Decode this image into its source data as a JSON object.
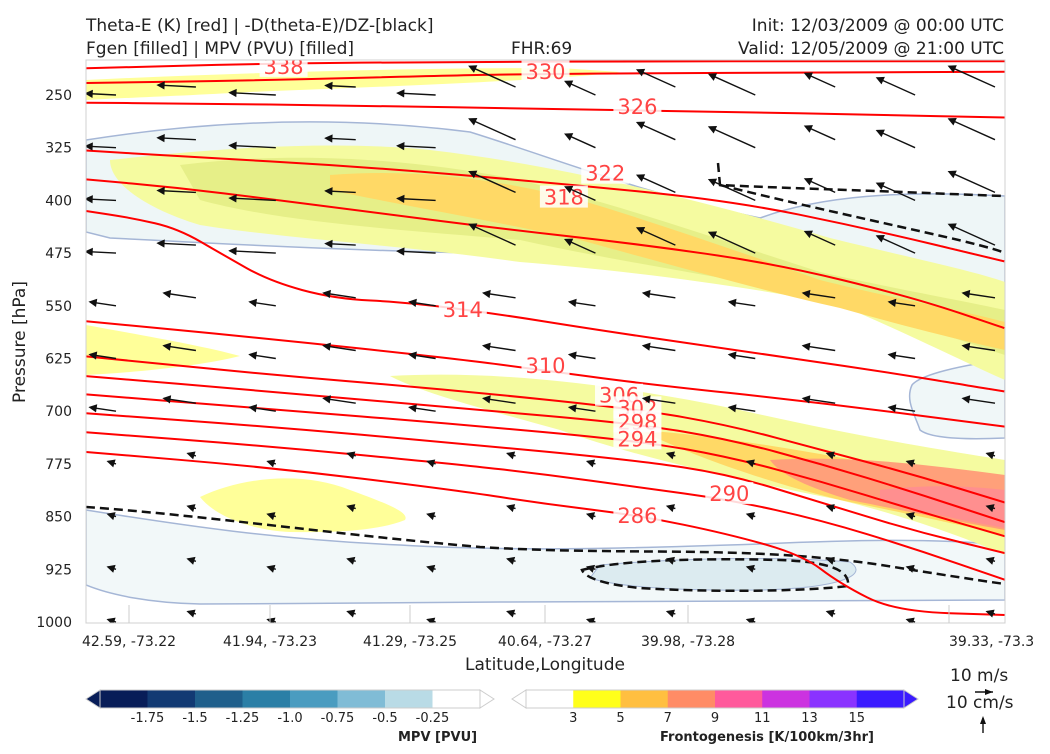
{
  "header": {
    "title_line1": "Theta-E (K) [red] | -D(theta-E)/DZ-[black]",
    "title_line2": "Fgen [filled] | MPV (PVU) [filled]",
    "fhr": "FHR:69",
    "init": "Init: 12/03/2009 @ 00:00 UTC",
    "valid": "Valid: 12/05/2009 @ 21:00 UTC"
  },
  "chart_data": {
    "type": "cross-section",
    "xlabel": "Latitude,Longitude",
    "ylabel": "Pressure [hPa]",
    "x_ticks": [
      "42.59, -73.22",
      "41.94, -73.23",
      "41.29, -73.25",
      "40.64, -73.27",
      "39.98, -73.28",
      "39.33, -73.3"
    ],
    "y_ticks": [
      250,
      325,
      400,
      475,
      550,
      625,
      700,
      775,
      850,
      925,
      1000
    ],
    "ylim": [
      1000,
      200
    ],
    "y_scale": "pressure (inverted)",
    "theta_e_contours": [
      {
        "value": 338,
        "label": "338",
        "points": [
          [
            0.0,
            212
          ],
          [
            0.2,
            205
          ],
          [
            0.4,
            203
          ],
          [
            0.6,
            202
          ],
          [
            0.8,
            202
          ],
          [
            1.0,
            202
          ]
        ]
      },
      {
        "value": 330,
        "label": "330",
        "points": [
          [
            0.0,
            233
          ],
          [
            0.2,
            229
          ],
          [
            0.4,
            222
          ],
          [
            0.5,
            220
          ],
          [
            0.6,
            219
          ],
          [
            0.8,
            218
          ],
          [
            1.0,
            217
          ]
        ]
      },
      {
        "value": 326,
        "label": "326",
        "points": [
          [
            0.0,
            261
          ],
          [
            0.1,
            262
          ],
          [
            0.3,
            265
          ],
          [
            0.5,
            270
          ],
          [
            0.7,
            274
          ],
          [
            0.85,
            278
          ],
          [
            1.0,
            282
          ]
        ]
      },
      {
        "value": 322,
        "label": "322",
        "points": [
          [
            0.0,
            329
          ],
          [
            0.1,
            337
          ],
          [
            0.3,
            352
          ],
          [
            0.5,
            374
          ],
          [
            0.7,
            400
          ],
          [
            0.85,
            440
          ],
          [
            1.0,
            487
          ]
        ]
      },
      {
        "value": 318,
        "label": "318",
        "points": [
          [
            0.0,
            370
          ],
          [
            0.1,
            382
          ],
          [
            0.2,
            398
          ],
          [
            0.3,
            415
          ],
          [
            0.45,
            440
          ],
          [
            0.6,
            462
          ],
          [
            0.75,
            490
          ],
          [
            0.9,
            538
          ],
          [
            1.0,
            582
          ]
        ]
      },
      {
        "value": 314,
        "label": "314",
        "points": [
          [
            0.0,
            415
          ],
          [
            0.05,
            425
          ],
          [
            0.1,
            440
          ],
          [
            0.15,
            478
          ],
          [
            0.2,
            515
          ],
          [
            0.27,
            540
          ],
          [
            0.35,
            545
          ],
          [
            0.45,
            562
          ],
          [
            0.55,
            583
          ],
          [
            0.7,
            612
          ],
          [
            0.85,
            640
          ],
          [
            1.0,
            672
          ]
        ]
      },
      {
        "value": 310,
        "label": "310",
        "points": [
          [
            0.0,
            572
          ],
          [
            0.2,
            597
          ],
          [
            0.4,
            625
          ],
          [
            0.5,
            642
          ],
          [
            0.6,
            660
          ],
          [
            0.8,
            688
          ],
          [
            1.0,
            722
          ]
        ]
      },
      {
        "value": 306,
        "label": "306",
        "points": [
          [
            0.0,
            622
          ],
          [
            0.2,
            648
          ],
          [
            0.4,
            670
          ],
          [
            0.6,
            697
          ],
          [
            0.7,
            720
          ],
          [
            0.8,
            755
          ],
          [
            0.9,
            790
          ],
          [
            1.0,
            830
          ]
        ]
      },
      {
        "value": 302,
        "label": "302",
        "points": [
          [
            0.0,
            650
          ],
          [
            0.2,
            672
          ],
          [
            0.4,
            695
          ],
          [
            0.6,
            718
          ],
          [
            0.7,
            740
          ],
          [
            0.8,
            775
          ],
          [
            0.9,
            815
          ],
          [
            1.0,
            858
          ]
        ]
      },
      {
        "value": 298,
        "label": "298",
        "points": [
          [
            0.0,
            676
          ],
          [
            0.2,
            697
          ],
          [
            0.4,
            718
          ],
          [
            0.6,
            742
          ],
          [
            0.7,
            765
          ],
          [
            0.8,
            800
          ],
          [
            0.9,
            840
          ],
          [
            1.0,
            878
          ]
        ]
      },
      {
        "value": 294,
        "label": "294",
        "points": [
          [
            0.0,
            703
          ],
          [
            0.2,
            722
          ],
          [
            0.4,
            745
          ],
          [
            0.6,
            770
          ],
          [
            0.7,
            790
          ],
          [
            0.8,
            830
          ],
          [
            0.9,
            870
          ],
          [
            1.0,
            902
          ]
        ]
      },
      {
        "value": 290,
        "label": "290",
        "points": [
          [
            0.0,
            730
          ],
          [
            0.2,
            750
          ],
          [
            0.4,
            775
          ],
          [
            0.5,
            790
          ],
          [
            0.6,
            808
          ],
          [
            0.7,
            826
          ],
          [
            0.8,
            855
          ],
          [
            0.9,
            895
          ],
          [
            1.0,
            940
          ]
        ]
      },
      {
        "value": 286,
        "label": "286",
        "points": [
          [
            0.0,
            758
          ],
          [
            0.2,
            780
          ],
          [
            0.4,
            812
          ],
          [
            0.5,
            832
          ],
          [
            0.6,
            848
          ],
          [
            0.7,
            875
          ],
          [
            0.78,
            905
          ],
          [
            0.82,
            945
          ],
          [
            0.88,
            985
          ],
          [
            1.0,
            990
          ]
        ]
      }
    ],
    "theta_e_label_positions": [
      [
        0.215,
        210
      ],
      [
        0.5,
        217
      ],
      [
        0.6,
        267
      ],
      [
        0.565,
        362
      ],
      [
        0.52,
        396
      ],
      [
        0.41,
        556
      ],
      [
        0.5,
        636
      ],
      [
        0.58,
        678
      ],
      [
        0.6,
        696
      ],
      [
        0.6,
        716
      ],
      [
        0.6,
        740
      ],
      [
        0.7,
        818
      ],
      [
        0.6,
        849
      ]
    ],
    "mpv_colorbar": {
      "label": "MPV [PVU]",
      "ticks": [
        "-1.75",
        "-1.5",
        "-1.25",
        "-1.0",
        "-0.75",
        "-0.5",
        "-0.25"
      ],
      "colors": [
        "#081d58",
        "#123a73",
        "#1f5f8b",
        "#2b7fa6",
        "#4a9cc0",
        "#80bcd6",
        "#b9dbe6",
        "#ffffff"
      ]
    },
    "fgen_colorbar": {
      "label": "Frontogenesis [K/100km/3hr]",
      "ticks": [
        "3",
        "5",
        "7",
        "9",
        "11",
        "13",
        "15"
      ],
      "colors": [
        "#ffffff",
        "#ffff1a",
        "#ffbf40",
        "#ff8c66",
        "#ff5a9c",
        "#cc33e0",
        "#8a33ff",
        "#3b1bff"
      ]
    },
    "wind_reference": {
      "horizontal": "10 m/s",
      "vertical": "10 cm/s"
    }
  }
}
